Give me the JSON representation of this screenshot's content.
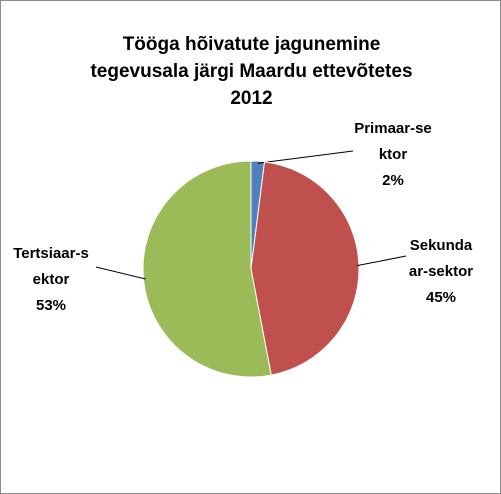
{
  "chart_data": {
    "type": "pie",
    "title": [
      "Tööga hõivatute jagunemine",
      "tegevusala järgi  Maardu ettevõtetes",
      "2012"
    ],
    "categories": [
      "Primaar-sektor",
      "Sekundaar-sektor",
      "Tertsiaar-sektor"
    ],
    "values": [
      2,
      45,
      53
    ],
    "value_labels": [
      "2%",
      "45%",
      "53%"
    ],
    "colors": [
      "#4f81bd",
      "#c0504d",
      "#9bbb59"
    ]
  }
}
